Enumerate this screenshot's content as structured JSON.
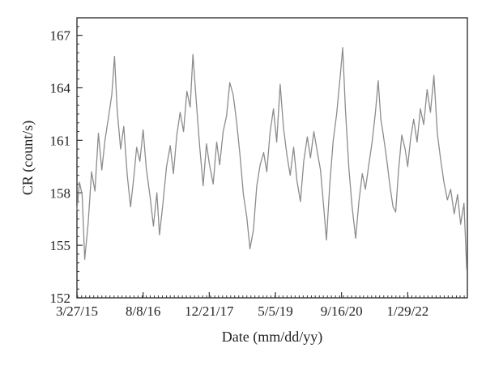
{
  "chart_data": {
    "type": "line",
    "xlabel": "Date (mm/dd/yy)",
    "ylabel": "CR (count/s)",
    "ylim": [
      152,
      168
    ],
    "yticks": [
      152,
      155,
      158,
      161,
      164,
      167
    ],
    "xlim": [
      "2015-03-27",
      "2023-04-25"
    ],
    "xticks": [
      {
        "date": "2015-03-27",
        "label": "3/27/15"
      },
      {
        "date": "2016-08-08",
        "label": "8/8/16"
      },
      {
        "date": "2017-12-21",
        "label": "12/21/17"
      },
      {
        "date": "2019-05-05",
        "label": "5/5/19"
      },
      {
        "date": "2020-09-16",
        "label": "9/16/20"
      },
      {
        "date": "2022-01-29",
        "label": "1/29/22"
      }
    ],
    "grid": false,
    "line_color": "#8c8c8c",
    "series": [
      {
        "points": [
          [
            "2015-03-27",
            157.0
          ],
          [
            "2015-04-15",
            158.6
          ],
          [
            "2015-05-05",
            157.9
          ],
          [
            "2015-05-25",
            154.2
          ],
          [
            "2015-06-20",
            156.3
          ],
          [
            "2015-07-15",
            159.2
          ],
          [
            "2015-08-10",
            158.1
          ],
          [
            "2015-09-05",
            161.4
          ],
          [
            "2015-10-01",
            159.3
          ],
          [
            "2015-10-25",
            161.0
          ],
          [
            "2015-11-20",
            162.3
          ],
          [
            "2015-12-15",
            163.6
          ],
          [
            "2016-01-05",
            165.8
          ],
          [
            "2016-01-25",
            162.7
          ],
          [
            "2016-02-20",
            160.5
          ],
          [
            "2016-03-15",
            161.8
          ],
          [
            "2016-04-10",
            159.0
          ],
          [
            "2016-05-05",
            157.2
          ],
          [
            "2016-05-30",
            158.9
          ],
          [
            "2016-06-20",
            160.6
          ],
          [
            "2016-07-15",
            159.8
          ],
          [
            "2016-08-08",
            161.6
          ],
          [
            "2016-09-01",
            159.4
          ],
          [
            "2016-10-01",
            157.7
          ],
          [
            "2016-10-25",
            156.1
          ],
          [
            "2016-11-20",
            158.0
          ],
          [
            "2016-12-10",
            155.6
          ],
          [
            "2017-01-05",
            157.4
          ],
          [
            "2017-02-01",
            159.5
          ],
          [
            "2017-03-01",
            160.7
          ],
          [
            "2017-03-25",
            159.1
          ],
          [
            "2017-04-20",
            161.3
          ],
          [
            "2017-05-15",
            162.6
          ],
          [
            "2017-06-10",
            161.5
          ],
          [
            "2017-07-05",
            163.8
          ],
          [
            "2017-07-30",
            162.9
          ],
          [
            "2017-08-20",
            165.9
          ],
          [
            "2017-09-15",
            163.1
          ],
          [
            "2017-10-10",
            160.6
          ],
          [
            "2017-11-05",
            158.4
          ],
          [
            "2017-11-30",
            160.8
          ],
          [
            "2017-12-21",
            159.7
          ],
          [
            "2018-01-20",
            158.5
          ],
          [
            "2018-02-15",
            160.9
          ],
          [
            "2018-03-10",
            159.6
          ],
          [
            "2018-04-05",
            161.5
          ],
          [
            "2018-05-01",
            162.4
          ],
          [
            "2018-05-25",
            164.3
          ],
          [
            "2018-06-20",
            163.6
          ],
          [
            "2018-07-15",
            162.1
          ],
          [
            "2018-08-10",
            160.2
          ],
          [
            "2018-09-05",
            157.9
          ],
          [
            "2018-10-01",
            156.6
          ],
          [
            "2018-10-25",
            154.8
          ],
          [
            "2018-11-20",
            155.9
          ],
          [
            "2018-12-15",
            158.4
          ],
          [
            "2019-01-10",
            159.6
          ],
          [
            "2019-02-05",
            160.3
          ],
          [
            "2019-03-01",
            159.2
          ],
          [
            "2019-03-25",
            161.4
          ],
          [
            "2019-04-20",
            162.8
          ],
          [
            "2019-05-15",
            160.9
          ],
          [
            "2019-06-10",
            164.2
          ],
          [
            "2019-07-05",
            161.7
          ],
          [
            "2019-08-01",
            160.1
          ],
          [
            "2019-08-25",
            159.0
          ],
          [
            "2019-09-20",
            160.6
          ],
          [
            "2019-10-15",
            158.7
          ],
          [
            "2019-11-10",
            157.5
          ],
          [
            "2019-12-05",
            159.8
          ],
          [
            "2020-01-01",
            161.2
          ],
          [
            "2020-01-25",
            160.0
          ],
          [
            "2020-02-20",
            161.5
          ],
          [
            "2020-03-15",
            160.4
          ],
          [
            "2020-04-10",
            159.3
          ],
          [
            "2020-05-05",
            157.1
          ],
          [
            "2020-05-25",
            155.3
          ],
          [
            "2020-06-20",
            158.6
          ],
          [
            "2020-07-15",
            161.0
          ],
          [
            "2020-08-10",
            162.5
          ],
          [
            "2020-09-05",
            164.6
          ],
          [
            "2020-09-25",
            166.3
          ],
          [
            "2020-10-15",
            162.8
          ],
          [
            "2020-11-10",
            159.4
          ],
          [
            "2020-12-05",
            157.2
          ],
          [
            "2021-01-01",
            155.4
          ],
          [
            "2021-01-25",
            157.5
          ],
          [
            "2021-02-20",
            159.1
          ],
          [
            "2021-03-15",
            158.2
          ],
          [
            "2021-04-10",
            159.6
          ],
          [
            "2021-05-05",
            160.9
          ],
          [
            "2021-05-30",
            162.6
          ],
          [
            "2021-06-20",
            164.4
          ],
          [
            "2021-07-10",
            162.2
          ],
          [
            "2021-07-25",
            161.5
          ],
          [
            "2021-08-20",
            160.1
          ],
          [
            "2021-09-15",
            158.5
          ],
          [
            "2021-10-10",
            157.2
          ],
          [
            "2021-10-30",
            156.9
          ],
          [
            "2021-11-20",
            159.2
          ],
          [
            "2021-12-15",
            161.3
          ],
          [
            "2022-01-10",
            160.5
          ],
          [
            "2022-01-29",
            159.5
          ],
          [
            "2022-02-20",
            161.1
          ],
          [
            "2022-03-15",
            162.2
          ],
          [
            "2022-04-10",
            160.9
          ],
          [
            "2022-05-05",
            162.8
          ],
          [
            "2022-05-30",
            161.9
          ],
          [
            "2022-06-25",
            163.9
          ],
          [
            "2022-07-20",
            162.6
          ],
          [
            "2022-08-15",
            164.7
          ],
          [
            "2022-09-10",
            161.4
          ],
          [
            "2022-10-05",
            159.9
          ],
          [
            "2022-10-30",
            158.6
          ],
          [
            "2022-11-25",
            157.6
          ],
          [
            "2022-12-20",
            158.2
          ],
          [
            "2023-01-15",
            156.8
          ],
          [
            "2023-02-10",
            157.9
          ],
          [
            "2023-03-05",
            156.2
          ],
          [
            "2023-03-30",
            157.4
          ],
          [
            "2023-04-20",
            153.6
          ]
        ]
      }
    ]
  }
}
